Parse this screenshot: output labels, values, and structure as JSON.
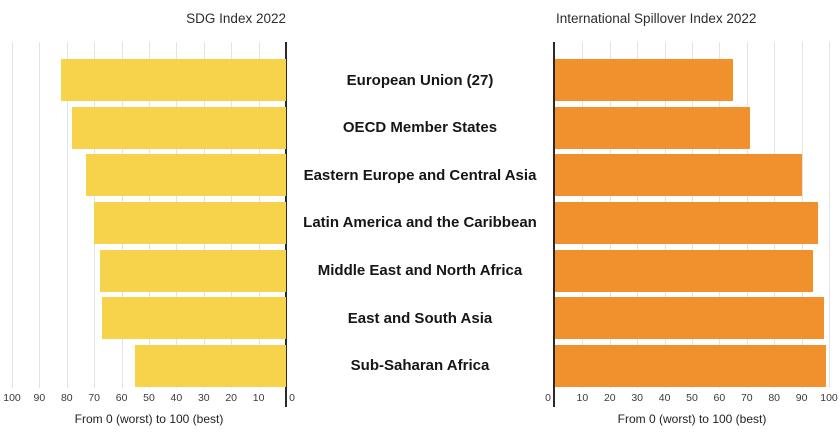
{
  "figure": {
    "background": "#ffffff"
  },
  "region_labels": [
    "European Union (27)",
    "OECD Member States",
    "Eastern Europe and Central Asia",
    "Latin America and the Caribbean",
    "Middle East and North Africa",
    "East and South Asia",
    "Sub-Saharan Africa"
  ],
  "chart_data": [
    {
      "type": "bar",
      "orientation": "horizontal",
      "title": "SDG Index 2022",
      "xlabel": "From 0 (worst) to 100 (best)",
      "categories": [
        "European Union (27)",
        "OECD Member States",
        "Eastern Europe and Central Asia",
        "Latin America and the Caribbean",
        "Middle East and North Africa",
        "East and South Asia",
        "Sub-Saharan Africa"
      ],
      "values": [
        82,
        78,
        73,
        70,
        68,
        67,
        55
      ],
      "xlim": [
        100,
        0
      ],
      "ticks": [
        100,
        90,
        80,
        70,
        60,
        50,
        40,
        30,
        20,
        10,
        0
      ],
      "bar_color": "#F6D34B",
      "zero_side": "right",
      "grid": true,
      "legend": "none"
    },
    {
      "type": "bar",
      "orientation": "horizontal",
      "title": "International Spillover Index 2022",
      "xlabel": "From 0 (worst) to 100 (best)",
      "categories": [
        "European Union (27)",
        "OECD Member States",
        "Eastern Europe and Central Asia",
        "Latin America and the Caribbean",
        "Middle East and North Africa",
        "East and South Asia",
        "Sub-Saharan Africa"
      ],
      "values": [
        65,
        71,
        90,
        96,
        94,
        98,
        99
      ],
      "xlim": [
        0,
        100
      ],
      "ticks": [
        0,
        10,
        20,
        30,
        40,
        50,
        60,
        70,
        80,
        90,
        100
      ],
      "bar_color": "#F1912D",
      "zero_side": "left",
      "grid": true,
      "legend": "none"
    }
  ]
}
